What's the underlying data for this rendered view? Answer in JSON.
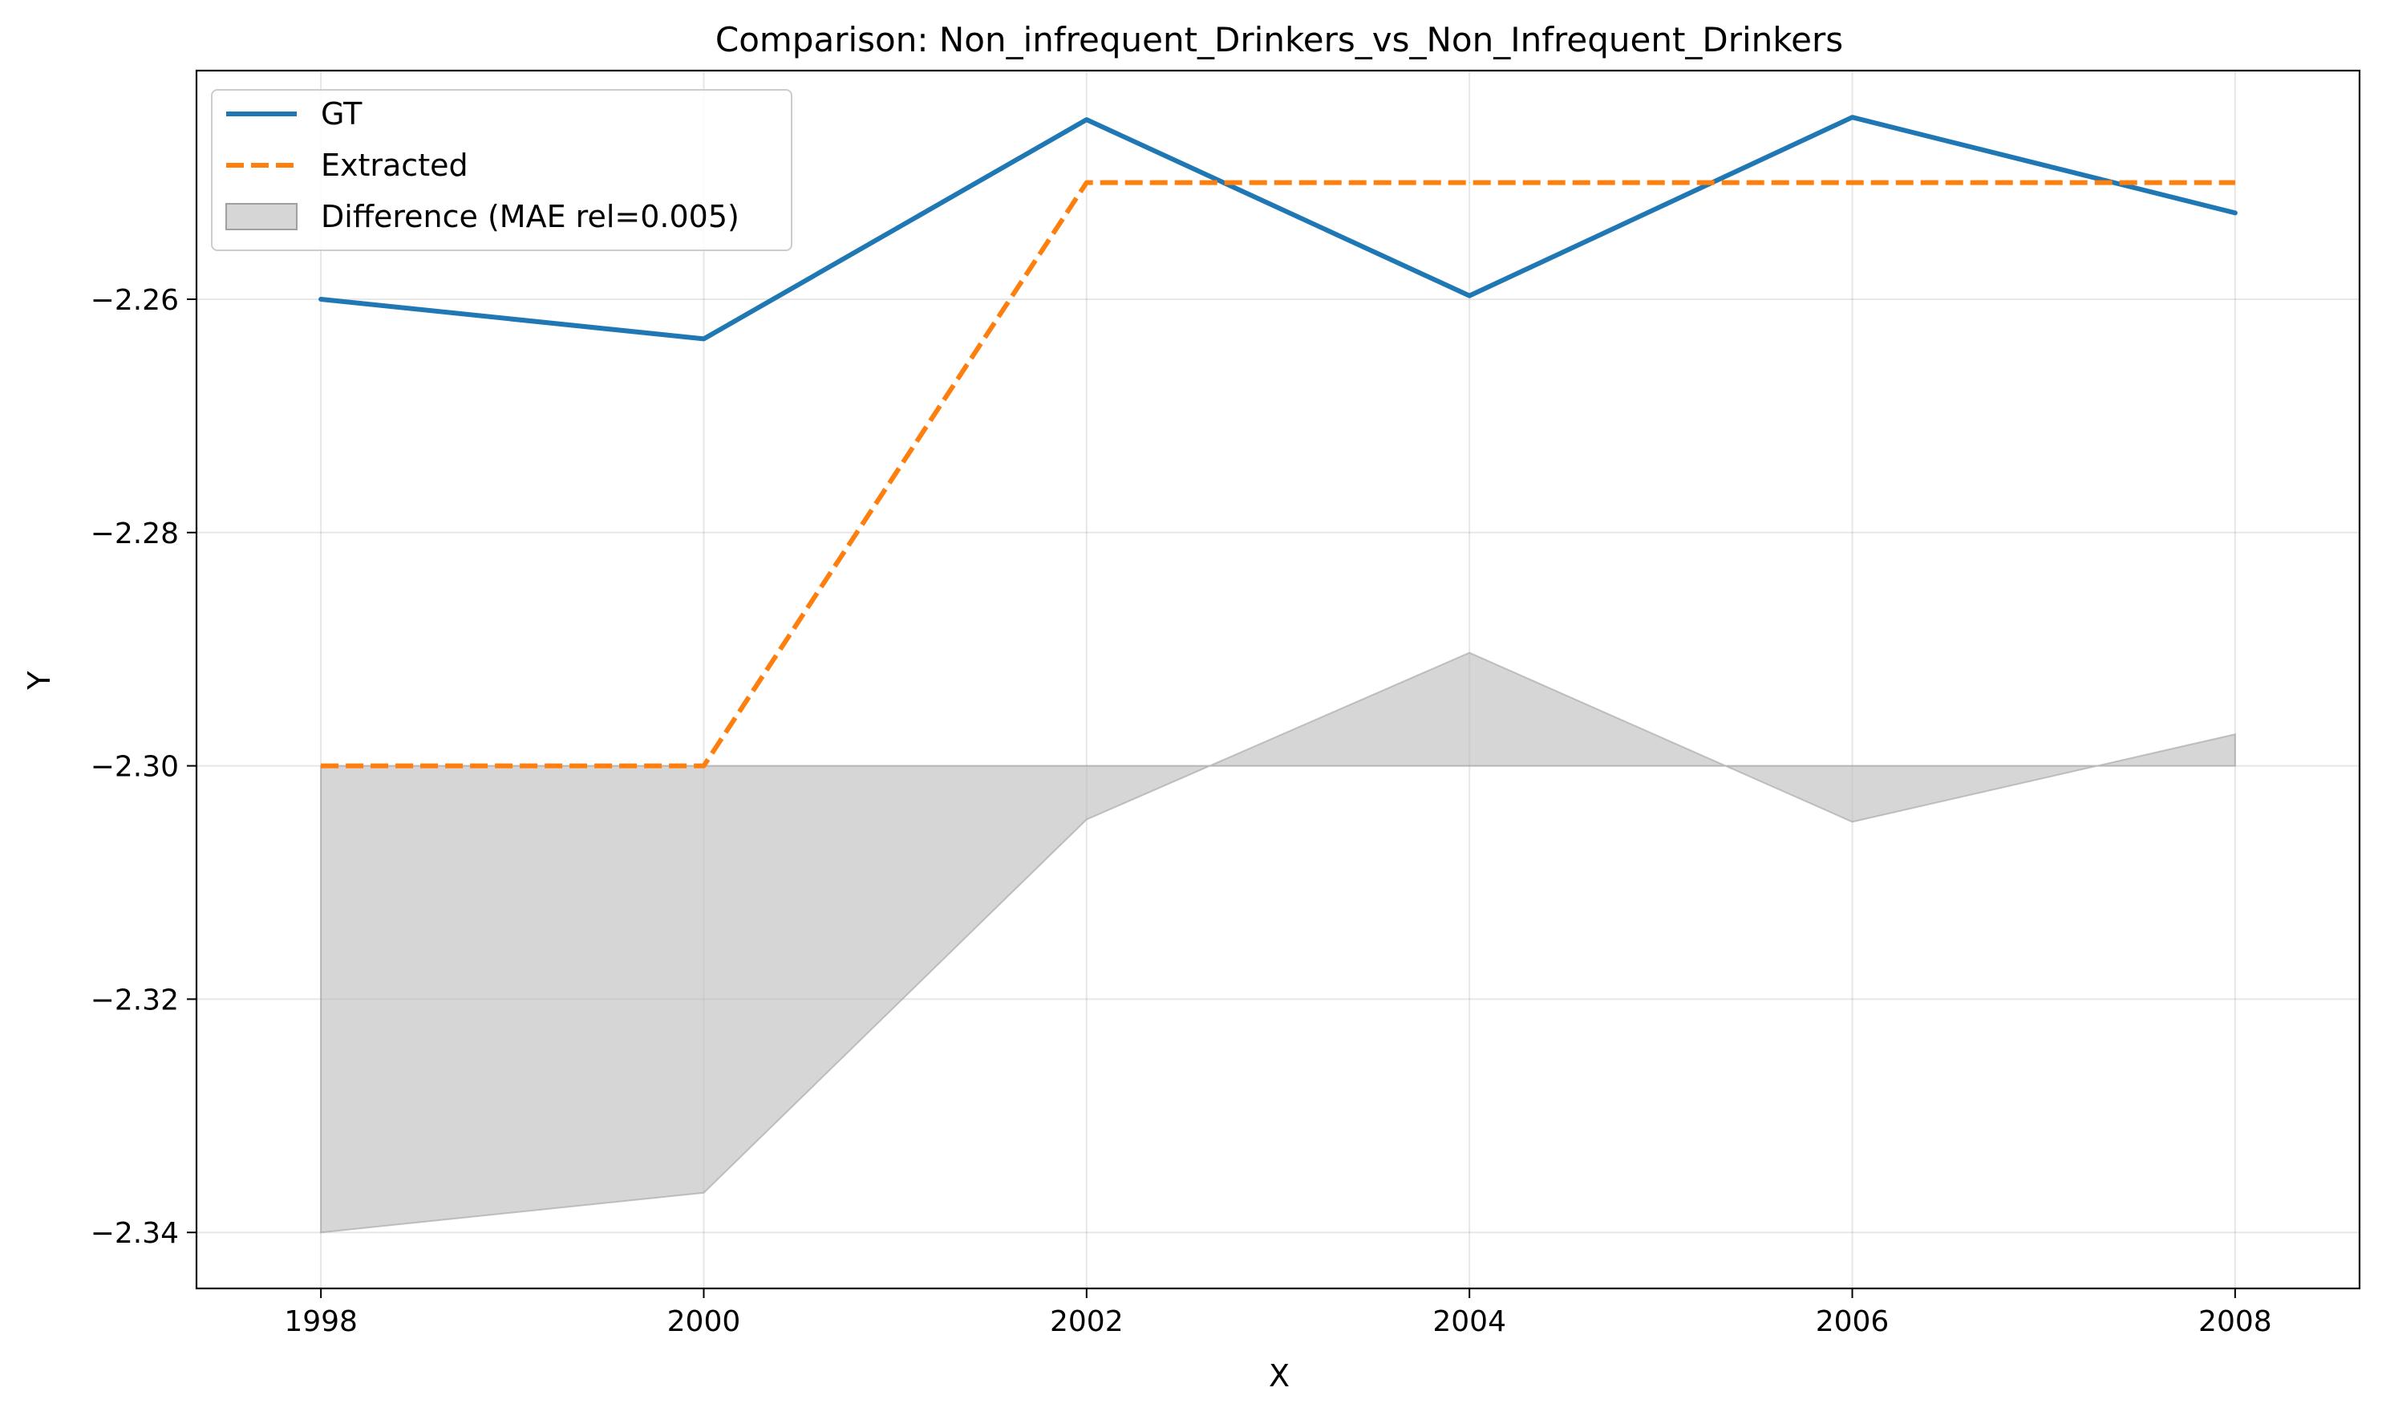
{
  "chart_data": {
    "type": "line",
    "title": "Comparison: Non_infrequent_Drinkers_vs_Non_Infrequent_Drinkers",
    "xlabel": "X",
    "ylabel": "Y",
    "x": [
      1998,
      2000,
      2002,
      2004,
      2006,
      2008
    ],
    "xlim": [
      1997.35,
      2008.65
    ],
    "ylim": [
      -2.3448,
      -2.2404
    ],
    "x_ticks": [
      1998,
      2000,
      2002,
      2004,
      2006,
      2008
    ],
    "y_ticks": [
      -2.26,
      -2.28,
      -2.3,
      -2.32,
      -2.34
    ],
    "y_tick_labels": [
      "−2.26",
      "−2.28",
      "−2.30",
      "−2.32",
      "−2.34"
    ],
    "grid": true,
    "legend_position": "top-left",
    "series": [
      {
        "name": "GT",
        "style": "solid",
        "color": "#1f77b4",
        "values": [
          -2.26,
          -2.2634,
          -2.2446,
          -2.2597,
          -2.2444,
          -2.2526
        ]
      },
      {
        "name": "Extracted",
        "style": "dashed",
        "color": "#ff7f0e",
        "values": [
          -2.3,
          -2.3,
          -2.25,
          -2.25,
          -2.25,
          -2.25
        ]
      }
    ],
    "difference_band": {
      "name": "Difference (MAE rel=0.005)",
      "color": "#bbbbbb",
      "baseline": -2.3,
      "values": [
        -2.34,
        -2.3366,
        -2.3046,
        -2.2903,
        -2.3048,
        -2.2973
      ]
    }
  }
}
